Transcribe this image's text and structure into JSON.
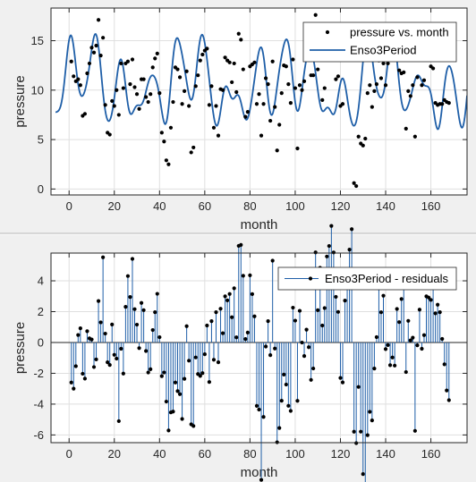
{
  "chart_data": [
    {
      "type": "line",
      "xlabel": "month",
      "ylabel": "pressure",
      "xlim": [
        -8,
        176
      ],
      "ylim": [
        -0.6,
        18.3
      ],
      "xticks": [
        0,
        20,
        40,
        60,
        80,
        100,
        120,
        140,
        160
      ],
      "yticks": [
        0,
        5,
        10,
        15
      ],
      "grid": true,
      "legend_location": "top-right",
      "series": [
        {
          "name": "pressure vs. month",
          "style": "points",
          "color": "#000000",
          "points": [
            [
              1,
              12.9
            ],
            [
              2,
              11.4
            ],
            [
              3,
              10.9
            ],
            [
              4,
              11.1
            ],
            [
              5,
              10.5
            ],
            [
              6,
              7.4
            ],
            [
              7,
              7.6
            ],
            [
              8,
              11.7
            ],
            [
              9,
              12.7
            ],
            [
              10,
              14.3
            ],
            [
              11,
              13.8
            ],
            [
              12,
              14.5
            ],
            [
              13,
              17.1
            ],
            [
              14,
              13.5
            ],
            [
              15,
              15.3
            ],
            [
              16,
              8.5
            ],
            [
              17,
              5.7
            ],
            [
              18,
              5.5
            ],
            [
              19,
              8.9
            ],
            [
              20,
              8.4
            ],
            [
              21,
              10.0
            ],
            [
              22,
              7.5
            ],
            [
              23,
              12.7
            ],
            [
              24,
              10.2
            ],
            [
              25,
              12.7
            ],
            [
              26,
              12.9
            ],
            [
              27,
              10.6
            ],
            [
              28,
              13.1
            ],
            [
              29,
              10.3
            ],
            [
              30,
              9.6
            ],
            [
              31,
              8.1
            ],
            [
              32,
              11.1
            ],
            [
              33,
              11.1
            ],
            [
              34,
              9.3
            ],
            [
              35,
              8.8
            ],
            [
              36,
              9.6
            ],
            [
              37,
              12.3
            ],
            [
              38,
              13.2
            ],
            [
              39,
              13.7
            ],
            [
              40,
              9.7
            ],
            [
              41,
              5.7
            ],
            [
              42,
              4.8
            ],
            [
              43,
              2.9
            ],
            [
              44,
              2.5
            ],
            [
              45,
              6.2
            ],
            [
              46,
              8.8
            ],
            [
              47,
              12.3
            ],
            [
              48,
              12.1
            ],
            [
              49,
              11.3
            ],
            [
              50,
              8.6
            ],
            [
              51,
              9.9
            ],
            [
              52,
              11.9
            ],
            [
              53,
              8.4
            ],
            [
              54,
              3.7
            ],
            [
              55,
              4.2
            ],
            [
              56,
              10.4
            ],
            [
              57,
              11.5
            ],
            [
              58,
              13.0
            ],
            [
              59,
              13.6
            ],
            [
              60,
              14.0
            ],
            [
              61,
              14.2
            ],
            [
              62,
              8.5
            ],
            [
              63,
              10.4
            ],
            [
              64,
              6.2
            ],
            [
              65,
              8.4
            ],
            [
              66,
              5.4
            ],
            [
              67,
              10.1
            ],
            [
              68,
              10.0
            ],
            [
              69,
              13.3
            ],
            [
              70,
              13.0
            ],
            [
              71,
              12.8
            ],
            [
              72,
              10.8
            ],
            [
              73,
              12.7
            ],
            [
              74,
              9.8
            ],
            [
              75,
              15.7
            ],
            [
              76,
              15.1
            ],
            [
              77,
              12.1
            ],
            [
              78,
              7.3
            ],
            [
              79,
              7.8
            ],
            [
              80,
              12.4
            ],
            [
              81,
              12.6
            ],
            [
              82,
              12.8
            ],
            [
              83,
              8.6
            ],
            [
              84,
              9.6
            ],
            [
              85,
              5.4
            ],
            [
              86,
              8.6
            ],
            [
              87,
              11.2
            ],
            [
              88,
              10.6
            ],
            [
              89,
              6.9
            ],
            [
              90,
              12.9
            ],
            [
              91,
              8.3
            ],
            [
              92,
              3.9
            ],
            [
              93,
              6.5
            ],
            [
              94,
              9.7
            ],
            [
              95,
              12.5
            ],
            [
              96,
              12.4
            ],
            [
              97,
              10.6
            ],
            [
              98,
              8.7
            ],
            [
              99,
              13.1
            ],
            [
              100,
              10.2
            ],
            [
              101,
              4.1
            ],
            [
              102,
              10.5
            ],
            [
              103,
              10.0
            ],
            [
              104,
              10.9
            ],
            [
              105,
              14.0
            ],
            [
              106,
              13.6
            ],
            [
              107,
              11.5
            ],
            [
              108,
              11.5
            ],
            [
              109,
              17.6
            ],
            [
              110,
              12.1
            ],
            [
              111,
              13.4
            ],
            [
              112,
              9.0
            ],
            [
              113,
              10.2
            ],
            [
              114,
              13.8
            ],
            [
              115,
              14.4
            ],
            [
              116,
              15.3
            ],
            [
              117,
              13.4
            ],
            [
              118,
              11.1
            ],
            [
              119,
              11.4
            ],
            [
              120,
              8.4
            ],
            [
              121,
              8.6
            ],
            [
              122,
              13.3
            ],
            [
              123,
              13.6
            ],
            [
              124,
              13.8
            ],
            [
              125,
              14.1
            ],
            [
              126,
              0.6
            ],
            [
              127,
              0.3
            ],
            [
              128,
              5.3
            ],
            [
              129,
              4.6
            ],
            [
              130,
              4.4
            ],
            [
              131,
              5.1
            ],
            [
              132,
              9.7
            ],
            [
              133,
              10.5
            ],
            [
              134,
              8.3
            ],
            [
              135,
              9.9
            ],
            [
              136,
              10.6
            ],
            [
              137,
              13.0
            ],
            [
              138,
              11.2
            ],
            [
              139,
              12.7
            ],
            [
              140,
              10.5
            ],
            [
              141,
              12.7
            ],
            [
              142,
              13.3
            ],
            [
              143,
              14.7
            ],
            [
              144,
              13.5
            ],
            [
              145,
              15.2
            ],
            [
              146,
              12.0
            ],
            [
              147,
              11.7
            ],
            [
              148,
              11.8
            ],
            [
              149,
              6.1
            ],
            [
              150,
              9.9
            ],
            [
              151,
              9.4
            ],
            [
              152,
              10.5
            ],
            [
              153,
              5.3
            ],
            [
              154,
              11.3
            ],
            [
              155,
              13.5
            ],
            [
              156,
              10.5
            ],
            [
              157,
              11.0
            ],
            [
              158,
              13.4
            ],
            [
              159,
              13.2
            ],
            [
              160,
              12.4
            ],
            [
              161,
              12.2
            ],
            [
              162,
              8.7
            ],
            [
              163,
              8.5
            ],
            [
              164,
              8.6
            ],
            [
              165,
              8.6
            ],
            [
              166,
              9.0
            ],
            [
              167,
              8.8
            ],
            [
              168,
              8.7
            ]
          ]
        },
        {
          "name": "Enso3Period",
          "style": "line",
          "color": "#1f5fa8",
          "model": {
            "b1": 10.5,
            "b2": 2.8,
            "b3": 0.15,
            "b4": 12.0,
            "b5": 0.7,
            "b6": 1.6,
            "b7": 0.35,
            "b8": 44.0,
            "b9": 0.4,
            "b10": 0.5,
            "b11": 0.85,
            "b12": 26.0,
            "b13": 0.45,
            "b14": 1.2
          },
          "x_range": [
            -6,
            176
          ]
        }
      ]
    },
    {
      "type": "stem",
      "xlabel": "month",
      "ylabel": "pressure",
      "xlim": [
        -8,
        176
      ],
      "ylim": [
        -6.5,
        5.8
      ],
      "xticks": [
        0,
        20,
        40,
        60,
        80,
        100,
        120,
        140,
        160
      ],
      "yticks": [
        -6,
        -4,
        -2,
        0,
        2,
        4
      ],
      "grid": true,
      "legend_location": "top-right",
      "series": [
        {
          "name": "Enso3Period - residuals",
          "color": "#1f5fa8",
          "values_from": "residuals of pressure vs. month minus Enso3Period"
        }
      ]
    }
  ]
}
